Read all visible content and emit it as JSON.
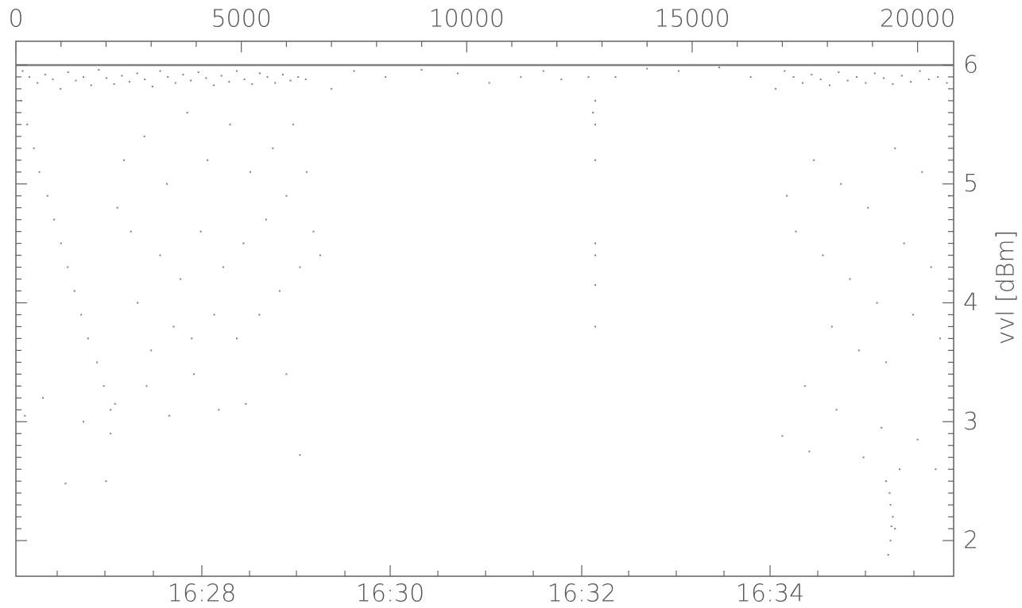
{
  "chart_data": {
    "type": "scatter",
    "title": "",
    "ylabel": "vvl [dBm]",
    "ylim": [
      1.7,
      6.2
    ],
    "y_ticks": [
      "2",
      "3",
      "4",
      "5",
      "6"
    ],
    "x_top_range": [
      0,
      20800
    ],
    "x_top_ticks": [
      "0",
      "5000",
      "10000",
      "15000",
      "20000"
    ],
    "x_bottom_ticks": [
      "16:28",
      "16:30",
      "16:32",
      "16:34"
    ],
    "grid": false,
    "point_color": "#808080",
    "series": [
      {
        "values_note_free": true,
        "x": [
          0,
          120,
          250,
          400,
          520,
          700,
          850,
          1000,
          1150,
          1300,
          1450,
          1600,
          1800,
          1950,
          2100,
          2250,
          2400,
          2550,
          2700,
          2850,
          3000,
          3200,
          3350,
          3500,
          3650,
          3800,
          3950,
          4100,
          4250,
          4400,
          4600,
          4750,
          4900,
          5050,
          5200,
          5400,
          5550,
          5700,
          5850,
          6000,
          6150,
          6300,
          6450,
          6600,
          6750,
          7000,
          7500,
          8200,
          9000,
          9800,
          10500,
          11200,
          11700,
          12100,
          12700,
          12800,
          13300,
          14000,
          14700,
          15600,
          16300,
          16850,
          17100,
          17300,
          17500,
          17700,
          17900,
          18100,
          18300,
          18500,
          18700,
          18900,
          19100,
          19300,
          19500,
          19700,
          19900,
          20100,
          20300,
          20500,
          20700,
          150,
          300,
          480,
          650,
          820,
          990,
          1160,
          1330,
          1500,
          1670,
          1840,
          2010,
          2180,
          2350,
          2520,
          2690,
          2860,
          3030,
          3200,
          3370,
          3540,
          3710,
          3880,
          4050,
          4220,
          4390,
          4560,
          4730,
          4900,
          5070,
          5240,
          5410,
          5580,
          5750,
          5920,
          6090,
          6260,
          6430,
          17050,
          17250,
          17450,
          17650,
          17850,
          18050,
          18250,
          18450,
          18650,
          18850,
          19050,
          19250,
          19450,
          19650,
          19850,
          20050,
          20250,
          20450,
          20650,
          12850,
          12850,
          12850,
          12850,
          12850,
          12850,
          12850,
          200,
          600,
          1100,
          1500,
          2000,
          2100,
          2200,
          2900,
          3400,
          3900,
          4500,
          5100,
          6000,
          6300,
          17000,
          17600,
          18200,
          18800,
          19200,
          19300,
          19400,
          19500,
          19600,
          20000,
          20400,
          19350,
          19400,
          19420,
          19450,
          19380
        ],
        "y": [
          5.9,
          5.7,
          5.5,
          5.3,
          5.1,
          4.9,
          4.7,
          4.5,
          4.3,
          4.1,
          3.9,
          3.7,
          3.5,
          3.3,
          3.1,
          4.8,
          5.2,
          4.6,
          4.0,
          5.4,
          3.6,
          4.4,
          5.0,
          3.8,
          4.2,
          5.6,
          3.4,
          4.6,
          5.2,
          3.9,
          4.3,
          5.5,
          3.7,
          4.5,
          5.1,
          3.9,
          4.7,
          5.3,
          4.1,
          4.9,
          5.5,
          4.3,
          5.1,
          4.6,
          4.4,
          5.8,
          5.95,
          5.9,
          5.96,
          5.93,
          5.85,
          5.9,
          5.95,
          5.88,
          5.9,
          5.6,
          5.9,
          5.97,
          5.95,
          5.98,
          5.9,
          5.8,
          4.9,
          4.6,
          3.3,
          5.2,
          4.4,
          3.8,
          5.0,
          4.2,
          3.6,
          4.8,
          4.0,
          3.5,
          5.3,
          4.5,
          3.9,
          5.1,
          4.3,
          3.7,
          4.9,
          5.95,
          5.9,
          5.85,
          5.92,
          5.88,
          5.8,
          5.94,
          5.87,
          5.9,
          5.83,
          5.96,
          5.89,
          5.84,
          5.91,
          5.86,
          5.93,
          5.88,
          5.82,
          5.95,
          5.9,
          5.85,
          5.92,
          5.87,
          5.94,
          5.89,
          5.83,
          5.91,
          5.86,
          5.95,
          5.88,
          5.84,
          5.93,
          5.9,
          5.85,
          5.92,
          5.87,
          5.9,
          5.88,
          5.95,
          5.9,
          5.85,
          5.92,
          5.88,
          5.83,
          5.94,
          5.87,
          5.9,
          5.85,
          5.93,
          5.89,
          5.84,
          5.91,
          5.86,
          5.95,
          5.88,
          5.9,
          5.85,
          5.5,
          5.2,
          4.5,
          4.4,
          4.15,
          3.8,
          5.7,
          3.05,
          3.2,
          2.48,
          3.0,
          2.5,
          2.9,
          3.15,
          3.3,
          3.05,
          3.7,
          3.1,
          3.15,
          3.4,
          2.72,
          2.88,
          2.75,
          3.1,
          2.7,
          2.95,
          2.5,
          2.3,
          2.1,
          2.6,
          2.85,
          2.6,
          1.88,
          2.0,
          2.12,
          2.2,
          2.4
        ]
      }
    ]
  }
}
